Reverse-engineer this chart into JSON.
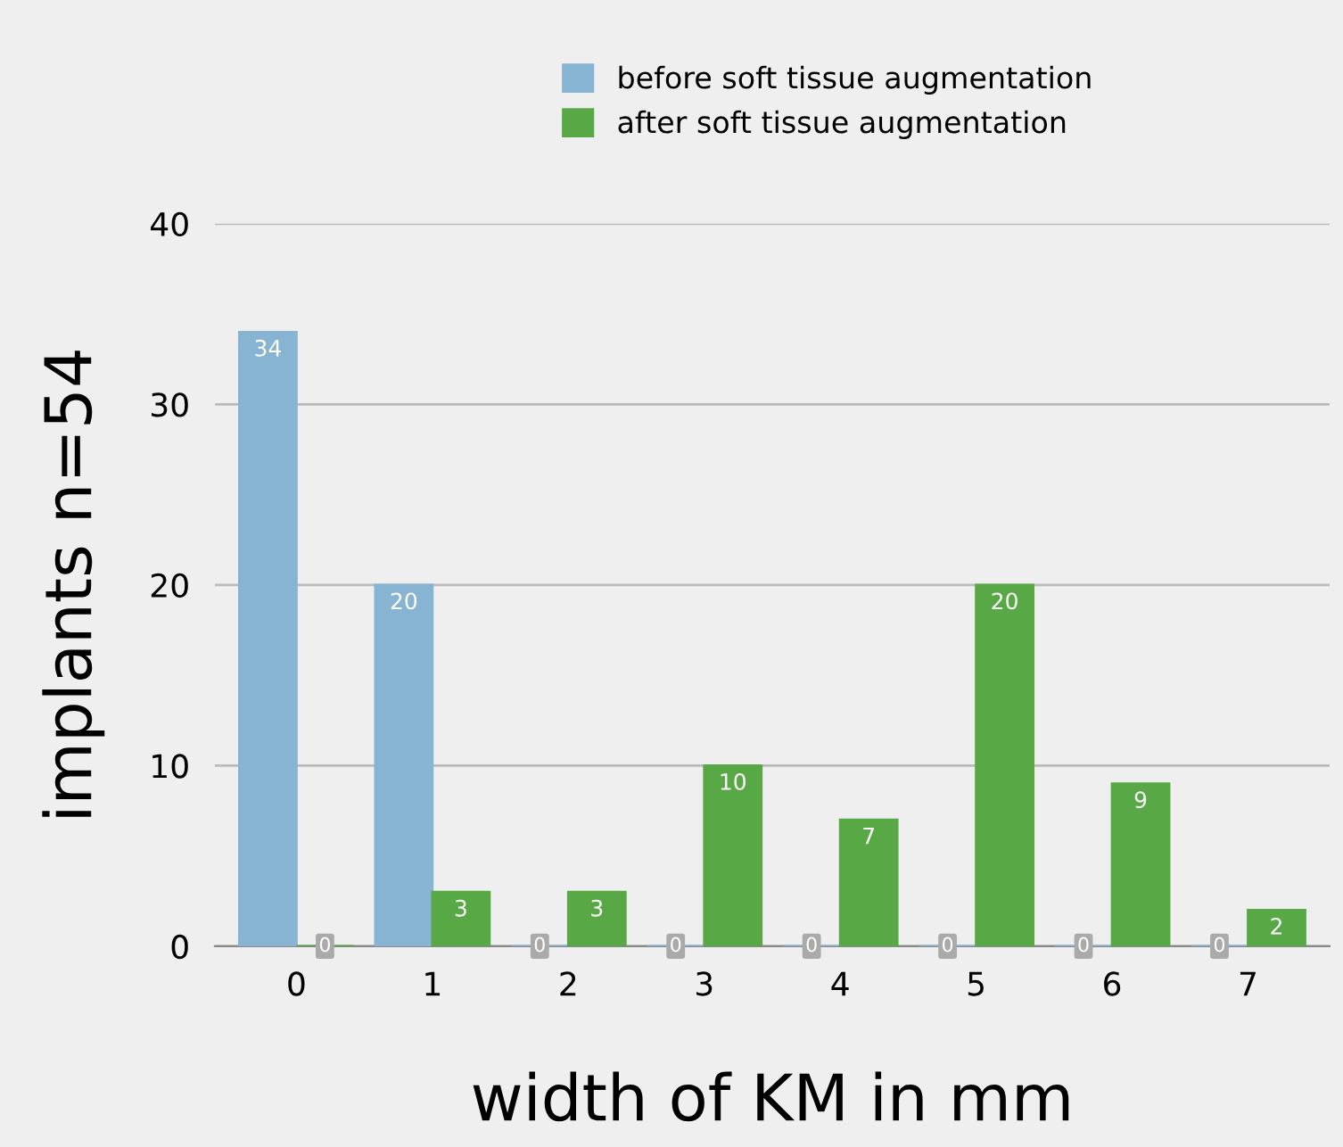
{
  "chart_data": {
    "type": "bar",
    "xlabel": "width of KM in mm",
    "ylabel": "implants n=54",
    "categories": [
      "0",
      "1",
      "2",
      "3",
      "4",
      "5",
      "6",
      "7"
    ],
    "series": [
      {
        "name": "before soft tissue augmentation",
        "color": "#86b4d2",
        "values": [
          34,
          20,
          0,
          0,
          0,
          0,
          0,
          0
        ]
      },
      {
        "name": "after soft tissue augmentation",
        "color": "#58a845",
        "values": [
          0,
          3,
          3,
          10,
          7,
          20,
          9,
          2
        ]
      }
    ],
    "ylim": [
      0,
      40
    ],
    "yticks": [
      0,
      10,
      20,
      30,
      40
    ],
    "grid": "y",
    "legend": "top",
    "data_labels": true
  }
}
